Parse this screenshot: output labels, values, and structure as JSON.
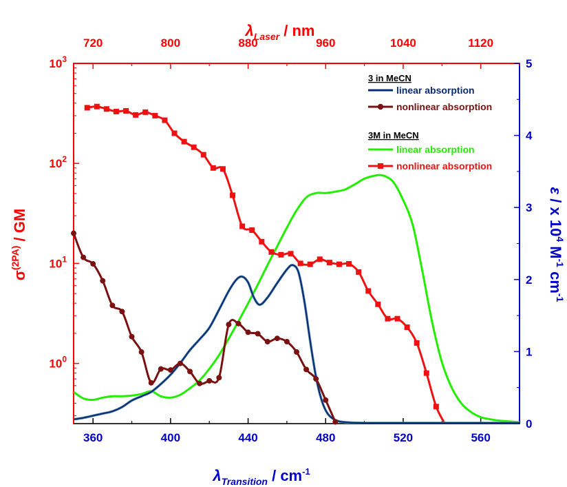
{
  "chart_data": {
    "type": "line",
    "x_bottom": {
      "label_main": "λ",
      "label_sub": "Transition",
      "label_rest": " / cm",
      "label_sup": "-1",
      "range": [
        350,
        580
      ],
      "ticks": [
        "360",
        "400",
        "440",
        "480",
        "520",
        "560"
      ],
      "tick_values": [
        360,
        400,
        440,
        480,
        520,
        560
      ]
    },
    "x_top": {
      "label_main": "λ",
      "label_sub": "Laser",
      "label_rest": " / nm",
      "ticks": [
        "720",
        "800",
        "880",
        "960",
        "1040",
        "1120"
      ],
      "tick_values": [
        720,
        800,
        880,
        960,
        1040,
        1120
      ],
      "note": "top axis = 2 × bottom axis"
    },
    "y_left": {
      "label_main": "σ",
      "label_sup": "(2PA)",
      "label_rest": " / GM",
      "scale": "log",
      "range": [
        0.25,
        1000
      ],
      "ticks": [
        {
          "base": "10",
          "exp": "0",
          "value": 1
        },
        {
          "base": "10",
          "exp": "1",
          "value": 10
        },
        {
          "base": "10",
          "exp": "2",
          "value": 100
        },
        {
          "base": "10",
          "exp": "3",
          "value": 1000
        }
      ]
    },
    "y_right": {
      "label_parts": [
        "ε",
        " / x 10",
        "4",
        " M",
        "-1",
        " cm",
        "-1"
      ],
      "range": [
        0,
        5
      ],
      "ticks": [
        "0",
        "1",
        "2",
        "3",
        "4",
        "5"
      ],
      "tick_values": [
        0,
        1,
        2,
        3,
        4,
        5
      ]
    },
    "legend": {
      "placement": "top-right",
      "groups": [
        {
          "heading": "3 in MeCN",
          "entries": [
            {
              "label": "linear absorption",
              "series": "s3_linear"
            },
            {
              "label": "nonlinear absorption",
              "series": "s3_nonlinear"
            }
          ]
        },
        {
          "heading": "3M in MeCN",
          "entries": [
            {
              "label": "linear absorption",
              "series": "s3M_linear"
            },
            {
              "label": "nonlinear absorption",
              "series": "s3M_nonlinear"
            }
          ]
        }
      ]
    },
    "colors": {
      "left_axis": "#ff0000",
      "right_axis": "#0000cc",
      "frame": "#000000",
      "s3_linear": "#0a2a7a",
      "s3_nonlinear": "#7a1010",
      "s3M_linear": "#22ee00",
      "s3M_nonlinear": "#ee1111"
    },
    "series": [
      {
        "id": "s3_linear",
        "axis": "right",
        "style": "line",
        "points": [
          [
            350,
            0.06
          ],
          [
            355,
            0.08
          ],
          [
            360,
            0.11
          ],
          [
            365,
            0.14
          ],
          [
            370,
            0.17
          ],
          [
            375,
            0.23
          ],
          [
            380,
            0.32
          ],
          [
            385,
            0.38
          ],
          [
            390,
            0.44
          ],
          [
            395,
            0.55
          ],
          [
            400,
            0.68
          ],
          [
            405,
            0.84
          ],
          [
            410,
            1.02
          ],
          [
            415,
            1.17
          ],
          [
            420,
            1.33
          ],
          [
            425,
            1.58
          ],
          [
            430,
            1.84
          ],
          [
            434,
            2.0
          ],
          [
            437,
            2.04
          ],
          [
            440,
            1.96
          ],
          [
            443,
            1.75
          ],
          [
            446,
            1.65
          ],
          [
            450,
            1.75
          ],
          [
            455,
            1.95
          ],
          [
            460,
            2.14
          ],
          [
            463,
            2.2
          ],
          [
            466,
            2.1
          ],
          [
            469,
            1.7
          ],
          [
            472,
            1.15
          ],
          [
            475,
            0.65
          ],
          [
            478,
            0.32
          ],
          [
            481,
            0.14
          ],
          [
            485,
            0.05
          ],
          [
            490,
            0.02
          ],
          [
            500,
            0.01
          ],
          [
            520,
            0.01
          ],
          [
            540,
            0.01
          ],
          [
            560,
            0.01
          ],
          [
            580,
            0.01
          ]
        ]
      },
      {
        "id": "s3_nonlinear",
        "axis": "left",
        "style": "line-marker",
        "points": [
          [
            350,
            20
          ],
          [
            355,
            11.5
          ],
          [
            360,
            9.9
          ],
          [
            365,
            6.7
          ],
          [
            370,
            3.8
          ],
          [
            375,
            3.3
          ],
          [
            380,
            1.85
          ],
          [
            385,
            1.3
          ],
          [
            390,
            0.64
          ],
          [
            395,
            0.88
          ],
          [
            400,
            0.86
          ],
          [
            405,
            1.0
          ],
          [
            410,
            0.83
          ],
          [
            415,
            0.63
          ],
          [
            420,
            0.67
          ],
          [
            425,
            0.72
          ],
          [
            430,
            2.45
          ],
          [
            435,
            2.5
          ],
          [
            440,
            2.05
          ],
          [
            445,
            1.98
          ],
          [
            450,
            1.65
          ],
          [
            455,
            1.78
          ],
          [
            460,
            1.65
          ],
          [
            465,
            1.3
          ],
          [
            470,
            0.87
          ],
          [
            475,
            0.7
          ],
          [
            480,
            0.43
          ],
          [
            485,
            0.26
          ]
        ]
      },
      {
        "id": "s3M_linear",
        "axis": "right",
        "style": "line",
        "points": [
          [
            350,
            0.44
          ],
          [
            355,
            0.35
          ],
          [
            360,
            0.33
          ],
          [
            365,
            0.36
          ],
          [
            370,
            0.38
          ],
          [
            375,
            0.38
          ],
          [
            380,
            0.39
          ],
          [
            385,
            0.41
          ],
          [
            390,
            0.45
          ],
          [
            395,
            0.38
          ],
          [
            400,
            0.36
          ],
          [
            405,
            0.4
          ],
          [
            410,
            0.49
          ],
          [
            415,
            0.6
          ],
          [
            420,
            0.76
          ],
          [
            425,
            0.95
          ],
          [
            430,
            1.18
          ],
          [
            435,
            1.42
          ],
          [
            440,
            1.67
          ],
          [
            445,
            1.93
          ],
          [
            450,
            2.2
          ],
          [
            455,
            2.46
          ],
          [
            460,
            2.72
          ],
          [
            465,
            2.96
          ],
          [
            470,
            3.14
          ],
          [
            475,
            3.2
          ],
          [
            480,
            3.2
          ],
          [
            485,
            3.22
          ],
          [
            490,
            3.25
          ],
          [
            495,
            3.32
          ],
          [
            500,
            3.4
          ],
          [
            505,
            3.44
          ],
          [
            508,
            3.45
          ],
          [
            511,
            3.43
          ],
          [
            515,
            3.35
          ],
          [
            520,
            3.1
          ],
          [
            525,
            2.75
          ],
          [
            530,
            2.1
          ],
          [
            535,
            1.4
          ],
          [
            540,
            0.85
          ],
          [
            545,
            0.5
          ],
          [
            550,
            0.28
          ],
          [
            555,
            0.16
          ],
          [
            560,
            0.09
          ],
          [
            565,
            0.06
          ],
          [
            570,
            0.04
          ],
          [
            575,
            0.03
          ],
          [
            580,
            0.02
          ]
        ]
      },
      {
        "id": "s3M_nonlinear",
        "axis": "left",
        "style": "line-marker",
        "points": [
          [
            357,
            360
          ],
          [
            362,
            370
          ],
          [
            367,
            350
          ],
          [
            372,
            330
          ],
          [
            377,
            335
          ],
          [
            382,
            305
          ],
          [
            387,
            325
          ],
          [
            392,
            300
          ],
          [
            397,
            270
          ],
          [
            402,
            200
          ],
          [
            407,
            165
          ],
          [
            412,
            145
          ],
          [
            417,
            122
          ],
          [
            422,
            90
          ],
          [
            427,
            88
          ],
          [
            432,
            48
          ],
          [
            437,
            23.5
          ],
          [
            442,
            21.5
          ],
          [
            447,
            16.5
          ],
          [
            452,
            13
          ],
          [
            457,
            12.2
          ],
          [
            462,
            12.5
          ],
          [
            467,
            10
          ],
          [
            472,
            9.8
          ],
          [
            477,
            11
          ],
          [
            482,
            10.2
          ],
          [
            487,
            9.8
          ],
          [
            492,
            9.9
          ],
          [
            497,
            8.2
          ],
          [
            502,
            5.3
          ],
          [
            507,
            3.9
          ],
          [
            512,
            2.8
          ],
          [
            517,
            2.8
          ],
          [
            522,
            2.3
          ],
          [
            527,
            1.6
          ],
          [
            532,
            0.8
          ],
          [
            537,
            0.37
          ],
          [
            542,
            0.24
          ]
        ]
      }
    ]
  }
}
